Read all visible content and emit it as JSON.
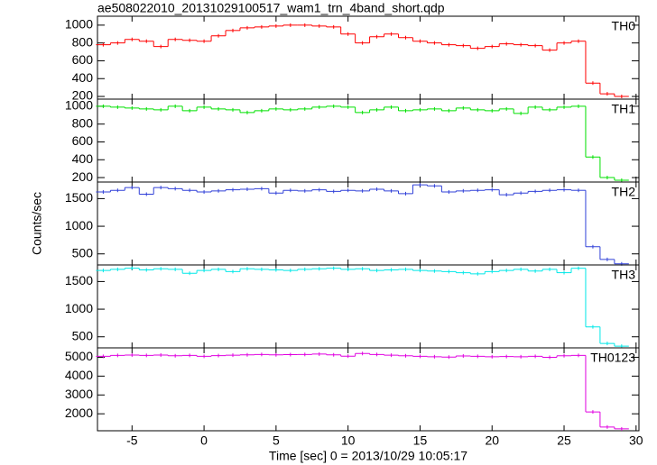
{
  "chart_data": [
    {
      "type": "line",
      "title": "ae508022010_20131029100517_wam1_trn_4band_short.qdp",
      "x": [
        -7,
        -6,
        -5,
        -4,
        -3,
        -2,
        -1,
        0,
        1,
        2,
        3,
        4,
        5,
        6,
        7,
        8,
        9,
        10,
        11,
        12,
        13,
        14,
        15,
        16,
        17,
        18,
        19,
        20,
        21,
        22,
        23,
        24,
        25,
        26,
        27,
        28,
        29
      ],
      "series": [
        {
          "name": "TH0",
          "color": "#ff0000",
          "values": [
            780,
            800,
            840,
            820,
            760,
            840,
            830,
            820,
            880,
            940,
            970,
            980,
            990,
            1000,
            1000,
            990,
            980,
            900,
            800,
            870,
            900,
            860,
            820,
            800,
            780,
            770,
            740,
            760,
            790,
            780,
            770,
            720,
            800,
            820,
            350,
            230,
            200
          ]
        }
      ],
      "xlim": [
        -7.4,
        30.2
      ],
      "xticks": [
        -5,
        0,
        5,
        10,
        15,
        20,
        25,
        30
      ],
      "ylim": [
        170,
        1100
      ],
      "yticks": [
        200,
        400,
        600,
        800,
        1000
      ]
    },
    {
      "type": "line",
      "x": [
        -7,
        -6,
        -5,
        -4,
        -3,
        -2,
        -1,
        0,
        1,
        2,
        3,
        4,
        5,
        6,
        7,
        8,
        9,
        10,
        11,
        12,
        13,
        14,
        15,
        16,
        17,
        18,
        19,
        20,
        21,
        22,
        23,
        24,
        25,
        26,
        27,
        28,
        29
      ],
      "series": [
        {
          "name": "TH1",
          "color": "#00e000",
          "values": [
            1000,
            990,
            980,
            970,
            960,
            1000,
            950,
            990,
            970,
            960,
            930,
            950,
            970,
            960,
            970,
            990,
            1000,
            990,
            930,
            960,
            990,
            950,
            960,
            970,
            950,
            980,
            960,
            950,
            970,
            920,
            990,
            960,
            990,
            1000,
            430,
            200,
            170
          ]
        }
      ],
      "xlim": [
        -7.4,
        30.2
      ],
      "xticks": [
        -5,
        0,
        5,
        10,
        15,
        20,
        25,
        30
      ],
      "ylim": [
        150,
        1080
      ],
      "yticks": [
        200,
        400,
        600,
        800,
        1000
      ]
    },
    {
      "type": "line",
      "y_label": "Counts/sec",
      "x": [
        -7,
        -6,
        -5,
        -4,
        -3,
        -2,
        -1,
        0,
        1,
        2,
        3,
        4,
        5,
        6,
        7,
        8,
        9,
        10,
        11,
        12,
        13,
        14,
        15,
        16,
        17,
        18,
        19,
        20,
        21,
        22,
        23,
        24,
        25,
        26,
        27,
        28,
        29
      ],
      "series": [
        {
          "name": "TH2",
          "color": "#3040d8",
          "values": [
            1620,
            1650,
            1700,
            1580,
            1700,
            1680,
            1650,
            1620,
            1640,
            1660,
            1670,
            1680,
            1600,
            1650,
            1640,
            1660,
            1630,
            1650,
            1640,
            1670,
            1640,
            1590,
            1750,
            1730,
            1620,
            1640,
            1650,
            1660,
            1570,
            1600,
            1630,
            1650,
            1660,
            1650,
            630,
            400,
            320
          ]
        }
      ],
      "xlim": [
        -7.4,
        30.2
      ],
      "xticks": [
        -5,
        0,
        5,
        10,
        15,
        20,
        25,
        30
      ],
      "ylim": [
        300,
        1800
      ],
      "yticks": [
        500,
        1000,
        1500
      ]
    },
    {
      "type": "line",
      "x": [
        -7,
        -6,
        -5,
        -4,
        -3,
        -2,
        -1,
        0,
        1,
        2,
        3,
        4,
        5,
        6,
        7,
        8,
        9,
        10,
        11,
        12,
        13,
        14,
        15,
        16,
        17,
        18,
        19,
        20,
        21,
        22,
        23,
        24,
        25,
        26,
        27,
        28,
        29
      ],
      "series": [
        {
          "name": "TH3",
          "color": "#00e8e8",
          "values": [
            1700,
            1720,
            1740,
            1710,
            1730,
            1720,
            1650,
            1700,
            1720,
            1680,
            1730,
            1720,
            1710,
            1700,
            1720,
            1730,
            1740,
            1720,
            1730,
            1700,
            1710,
            1720,
            1700,
            1690,
            1680,
            1660,
            1640,
            1680,
            1700,
            1720,
            1690,
            1720,
            1660,
            1740,
            680,
            380,
            330
          ]
        }
      ],
      "xlim": [
        -7.4,
        30.2
      ],
      "xticks": [
        -5,
        0,
        5,
        10,
        15,
        20,
        25,
        30
      ],
      "ylim": [
        300,
        1800
      ],
      "yticks": [
        500,
        1000,
        1500
      ]
    },
    {
      "type": "line",
      "x_label": "Time [sec] 0 = 2013/10/29 10:05:17",
      "x": [
        -7,
        -6,
        -5,
        -4,
        -3,
        -2,
        -1,
        0,
        1,
        2,
        3,
        4,
        5,
        6,
        7,
        8,
        9,
        10,
        11,
        12,
        13,
        14,
        15,
        16,
        17,
        18,
        19,
        20,
        21,
        22,
        23,
        24,
        25,
        26,
        27,
        28,
        29
      ],
      "series": [
        {
          "name": "TH0123",
          "color": "#e000e0",
          "values": [
            5050,
            5100,
            5120,
            5100,
            5120,
            5080,
            5100,
            5050,
            5090,
            5110,
            5130,
            5150,
            5130,
            5140,
            5150,
            5170,
            5130,
            5060,
            5200,
            5150,
            5110,
            5080,
            5050,
            5030,
            5010,
            5070,
            5050,
            5030,
            5040,
            5030,
            5050,
            5000,
            5080,
            5100,
            2100,
            1300,
            1200
          ]
        }
      ],
      "xlim": [
        -7.4,
        30.2
      ],
      "xticks": [
        -5,
        0,
        5,
        10,
        15,
        20,
        25,
        30
      ],
      "ylim": [
        1100,
        5500
      ],
      "yticks": [
        2000,
        3000,
        4000,
        5000
      ]
    }
  ]
}
